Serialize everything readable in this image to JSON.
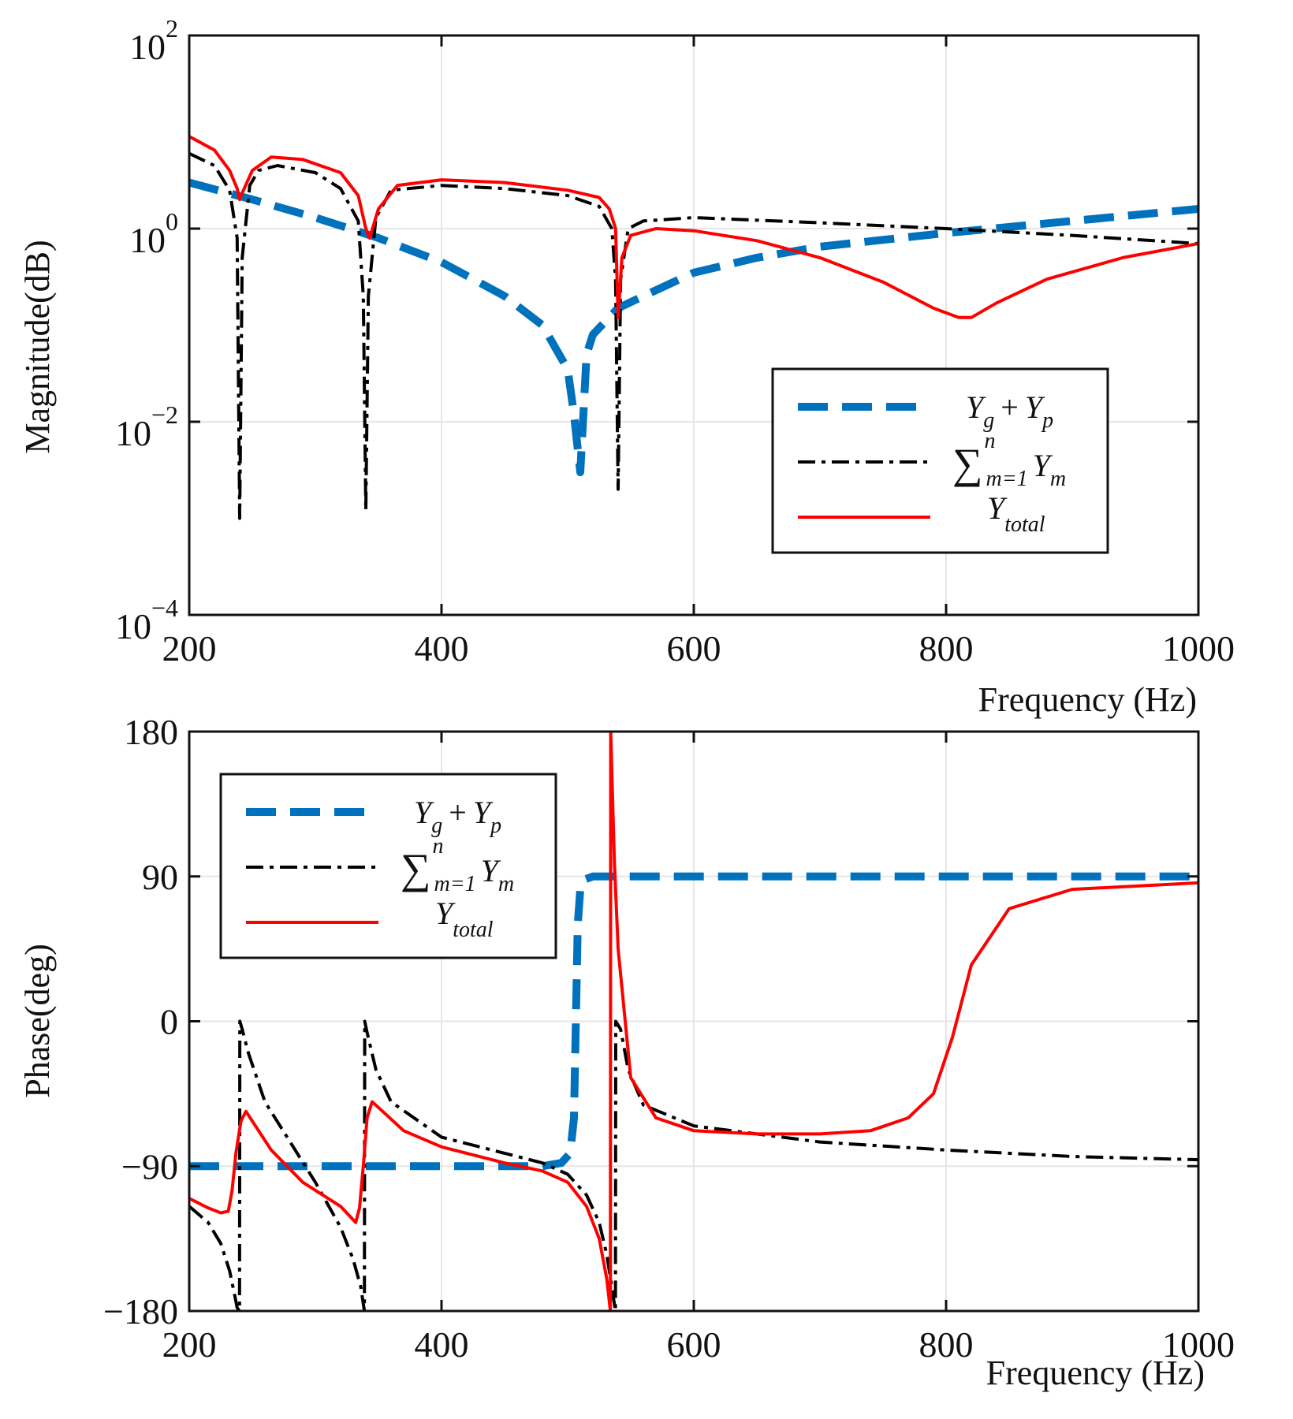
{
  "chart_data": [
    {
      "type": "line",
      "panel": "magnitude",
      "ylabel": "Magnitude(dB)",
      "xlabel": "Frequency (Hz)",
      "xlim": [
        200,
        1000
      ],
      "ylim": [
        0.0001,
        100
      ],
      "yscale": "log",
      "grid": true,
      "xticks": [
        200,
        400,
        600,
        800,
        1000
      ],
      "xtick_labels": [
        "200",
        "400",
        "600",
        "800",
        "1000"
      ],
      "yticks": [
        0.0001,
        0.01,
        1,
        100
      ],
      "ytick_labels": [
        {
          "base": "10",
          "exp": "−4"
        },
        {
          "base": "10",
          "exp": "−2"
        },
        {
          "base": "10",
          "exp": "0"
        },
        {
          "base": "10",
          "exp": "2"
        }
      ],
      "legend_position": "lower-right",
      "series": [
        {
          "name": "Y_g + Y_p",
          "color": "#0072BD",
          "style": "dashed",
          "x": [
            200,
            250,
            300,
            350,
            400,
            450,
            480,
            500,
            505,
            510,
            515,
            520,
            540,
            560,
            600,
            650,
            700,
            800,
            900,
            1000
          ],
          "y": [
            3.0,
            2.0,
            1.3,
            0.8,
            0.45,
            0.2,
            0.1,
            0.035,
            0.012,
            0.003,
            0.05,
            0.08,
            0.15,
            0.2,
            0.35,
            0.5,
            0.65,
            0.9,
            1.2,
            1.6
          ]
        },
        {
          "name": "∑ Y_m",
          "color": "#000000",
          "style": "dashdot",
          "x": [
            200,
            220,
            232,
            238,
            240,
            242,
            248,
            255,
            270,
            300,
            320,
            334,
            338,
            340,
            342,
            348,
            360,
            400,
            450,
            500,
            525,
            535,
            538,
            540,
            542,
            548,
            560,
            600,
            700,
            800,
            900,
            1000
          ],
          "y": [
            6.0,
            4.5,
            2.5,
            0.8,
            0.001,
            0.5,
            2.8,
            4.0,
            4.5,
            3.8,
            2.6,
            1.2,
            0.2,
            0.0012,
            0.2,
            1.3,
            2.5,
            2.8,
            2.6,
            2.2,
            1.7,
            1.0,
            0.3,
            0.002,
            0.3,
            1.0,
            1.2,
            1.3,
            1.15,
            1.0,
            0.85,
            0.7
          ]
        },
        {
          "name": "Y_total",
          "color": "#FF0000",
          "style": "solid",
          "x": [
            200,
            220,
            232,
            238,
            240,
            243,
            250,
            265,
            290,
            320,
            334,
            340,
            343,
            350,
            365,
            400,
            450,
            500,
            525,
            533,
            538,
            540,
            543,
            550,
            570,
            600,
            650,
            700,
            750,
            790,
            810,
            820,
            840,
            880,
            940,
            1000
          ],
          "y": [
            9.0,
            6.5,
            4.0,
            2.6,
            2.0,
            2.5,
            4.0,
            5.5,
            5.2,
            3.8,
            2.2,
            1.0,
            0.8,
            1.6,
            2.8,
            3.2,
            3.0,
            2.5,
            2.1,
            1.6,
            1.0,
            0.12,
            0.5,
            0.85,
            1.0,
            0.95,
            0.75,
            0.5,
            0.28,
            0.15,
            0.12,
            0.12,
            0.17,
            0.3,
            0.5,
            0.7
          ]
        }
      ]
    },
    {
      "type": "line",
      "panel": "phase",
      "ylabel": "Phase(deg)",
      "xlabel": "Frequency (Hz)",
      "xlim": [
        200,
        1000
      ],
      "ylim": [
        -180,
        180
      ],
      "grid": true,
      "xticks": [
        200,
        400,
        600,
        800,
        1000
      ],
      "xtick_labels": [
        "200",
        "400",
        "600",
        "800",
        "1000"
      ],
      "yticks": [
        -180,
        -90,
        0,
        90,
        180
      ],
      "ytick_labels": [
        "−180",
        "−90",
        "0",
        "90",
        "180"
      ],
      "legend_position": "upper-left",
      "series": [
        {
          "name": "Y_g + Y_p",
          "color": "#0072BD",
          "style": "dashed",
          "x": [
            200,
            300,
            400,
            480,
            495,
            502,
            505,
            508,
            510,
            513,
            520,
            600,
            700,
            800,
            900,
            1000
          ],
          "y": [
            -90,
            -90,
            -90,
            -90,
            -88,
            -82,
            -60,
            60,
            82,
            88,
            90,
            90,
            90,
            90,
            90,
            90
          ]
        },
        {
          "name": "∑ Y_m",
          "color": "#000000",
          "style": "dashdot",
          "x": [
            200,
            215,
            225,
            232,
            236,
            238,
            239.9,
            240.1,
            242,
            247,
            260,
            280,
            300,
            320,
            330,
            336,
            338.9,
            339.1,
            341,
            348,
            360,
            400,
            450,
            480,
            500,
            515,
            525,
            531,
            535,
            537.9,
            538.1,
            542,
            548,
            560,
            600,
            700,
            800,
            900,
            1000
          ],
          "y": [
            -115,
            -125,
            -138,
            -155,
            -170,
            -178,
            -180,
            0,
            -5,
            -20,
            -50,
            -75,
            -100,
            -128,
            -148,
            -165,
            -180,
            0,
            -7,
            -30,
            -50,
            -72,
            -82,
            -88,
            -95,
            -108,
            -125,
            -145,
            -165,
            -180,
            0,
            -5,
            -30,
            -52,
            -65,
            -75,
            -80,
            -84,
            -86
          ]
        },
        {
          "name": "Y_total",
          "color": "#FF0000",
          "style": "solid",
          "x": [
            200,
            215,
            225,
            231,
            234,
            237,
            241,
            245,
            250,
            265,
            290,
            320,
            332,
            335,
            338,
            341,
            345,
            352,
            370,
            400,
            450,
            480,
            500,
            515,
            525,
            531,
            533.9,
            534.1,
            537,
            540,
            550,
            570,
            600,
            650,
            700,
            740,
            770,
            790,
            805,
            820,
            850,
            900,
            1000
          ],
          "y": [
            -110,
            -116,
            -119,
            -118,
            -105,
            -82,
            -62,
            -56,
            -62,
            -80,
            -100,
            -115,
            -125,
            -116,
            -90,
            -60,
            -50,
            -55,
            -68,
            -78,
            -88,
            -93,
            -100,
            -115,
            -135,
            -160,
            -180,
            180,
            100,
            45,
            -35,
            -60,
            -68,
            -70,
            -70,
            -68,
            -60,
            -45,
            -10,
            35,
            70,
            82,
            86
          ]
        }
      ]
    }
  ],
  "legend": {
    "entries": [
      {
        "main": "Y",
        "sub": "g",
        "plus": "+",
        "main2": "Y",
        "sub2": "p"
      },
      {
        "sum": "∑",
        "sup": "n",
        "sub": "m=1",
        "main": "Y",
        "sub2": "m"
      },
      {
        "main": "Y",
        "sub": "total"
      }
    ]
  }
}
